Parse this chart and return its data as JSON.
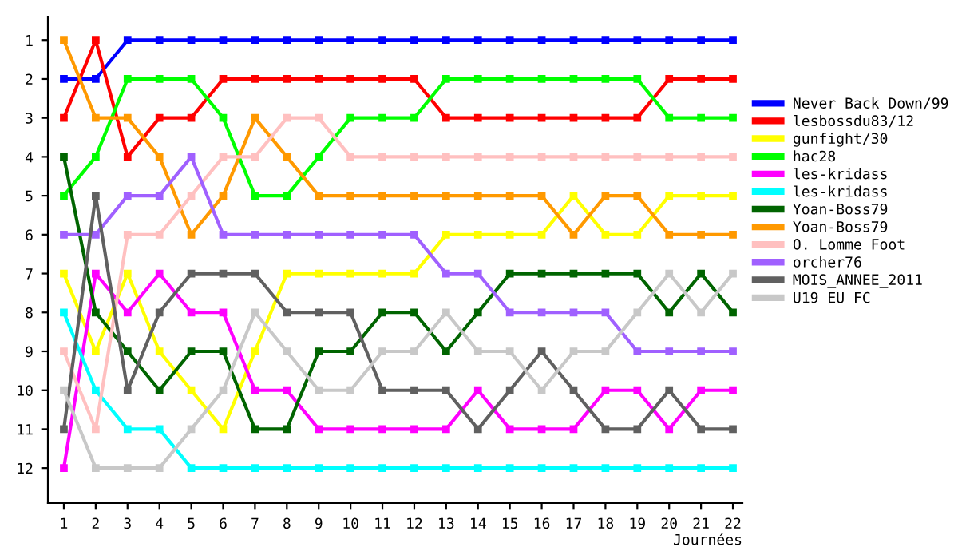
{
  "chart_data": {
    "type": "line",
    "xlabel": "Journées",
    "x": [
      1,
      2,
      3,
      4,
      5,
      6,
      7,
      8,
      9,
      10,
      11,
      12,
      13,
      14,
      15,
      16,
      17,
      18,
      19,
      20,
      21,
      22
    ],
    "xlim": [
      0.5,
      22.3
    ],
    "xticks": [
      1,
      2,
      3,
      4,
      5,
      6,
      7,
      8,
      9,
      10,
      11,
      12,
      13,
      14,
      15,
      16,
      17,
      18,
      19,
      20,
      21,
      22
    ],
    "ylim": [
      12.9,
      0.4
    ],
    "yticks": [
      1,
      2,
      3,
      4,
      5,
      6,
      7,
      8,
      9,
      10,
      11,
      12
    ],
    "marker": "square",
    "line_style": "solid",
    "grid": false,
    "legend": "right",
    "series": [
      {
        "name": "Never Back Down/99",
        "color": "#0000ff",
        "values": [
          2,
          2,
          1,
          1,
          1,
          1,
          1,
          1,
          1,
          1,
          1,
          1,
          1,
          1,
          1,
          1,
          1,
          1,
          1,
          1,
          1,
          1
        ]
      },
      {
        "name": "lesbossdu83/12",
        "color": "#ff0000",
        "values": [
          3,
          1,
          4,
          3,
          3,
          2,
          2,
          2,
          2,
          2,
          2,
          2,
          3,
          3,
          3,
          3,
          3,
          3,
          3,
          2,
          2,
          2
        ]
      },
      {
        "name": "gunfight/30",
        "color": "#ffff00",
        "values": [
          7,
          9,
          7,
          9,
          10,
          11,
          9,
          7,
          7,
          7,
          7,
          7,
          6,
          6,
          6,
          6,
          5,
          6,
          6,
          5,
          5,
          5
        ]
      },
      {
        "name": "hac28",
        "color": "#00ff00",
        "values": [
          5,
          4,
          2,
          2,
          2,
          3,
          5,
          5,
          4,
          3,
          3,
          3,
          2,
          2,
          2,
          2,
          2,
          2,
          2,
          3,
          3,
          3
        ]
      },
      {
        "name": "les-kridass",
        "color": "#ff00ff",
        "values": [
          12,
          7,
          8,
          7,
          8,
          8,
          10,
          10,
          11,
          11,
          11,
          11,
          11,
          10,
          11,
          11,
          11,
          10,
          10,
          11,
          10,
          10
        ]
      },
      {
        "name": "les-kridass",
        "color": "#00ffff",
        "values": [
          8,
          10,
          11,
          11,
          12,
          12,
          12,
          12,
          12,
          12,
          12,
          12,
          12,
          12,
          12,
          12,
          12,
          12,
          12,
          12,
          12,
          12
        ]
      },
      {
        "name": "Yoan-Boss79",
        "color": "#006400",
        "values": [
          4,
          8,
          9,
          10,
          9,
          9,
          11,
          11,
          9,
          9,
          8,
          8,
          9,
          8,
          7,
          7,
          7,
          7,
          7,
          8,
          7,
          8
        ]
      },
      {
        "name": "Yoan-Boss79",
        "color": "#ff9900",
        "values": [
          1,
          3,
          3,
          4,
          6,
          5,
          3,
          4,
          5,
          5,
          5,
          5,
          5,
          5,
          5,
          5,
          6,
          5,
          5,
          6,
          6,
          6
        ]
      },
      {
        "name": "O. Lomme Foot",
        "color": "#ffc0c0",
        "values": [
          9,
          11,
          6,
          6,
          5,
          4,
          4,
          3,
          3,
          4,
          4,
          4,
          4,
          4,
          4,
          4,
          4,
          4,
          4,
          4,
          4,
          4
        ]
      },
      {
        "name": "orcher76",
        "color": "#a060ff",
        "values": [
          6,
          6,
          5,
          5,
          4,
          6,
          6,
          6,
          6,
          6,
          6,
          6,
          7,
          7,
          8,
          8,
          8,
          8,
          9,
          9,
          9,
          9
        ]
      },
      {
        "name": "MOIS_ANNEE_2011",
        "color": "#606060",
        "values": [
          11,
          5,
          10,
          8,
          7,
          7,
          7,
          8,
          8,
          8,
          10,
          10,
          10,
          11,
          10,
          9,
          10,
          11,
          11,
          10,
          11,
          11
        ]
      },
      {
        "name": "U19 EU FC",
        "color": "#c8c8c8",
        "values": [
          10,
          12,
          12,
          12,
          11,
          10,
          8,
          9,
          10,
          10,
          9,
          9,
          8,
          9,
          9,
          10,
          9,
          9,
          8,
          7,
          8,
          7
        ]
      }
    ]
  }
}
